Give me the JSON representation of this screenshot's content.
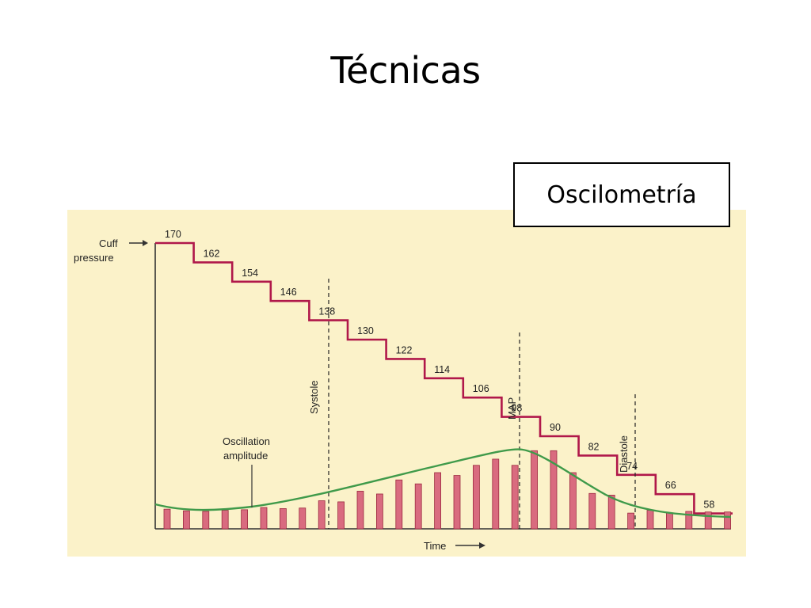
{
  "slide": {
    "title": "Técnicas",
    "label_box": "Oscilometría"
  },
  "colors": {
    "panel_bg": "#fbf2c9",
    "pressure_line": "#b0184a",
    "bar_fill": "#d96b7f",
    "bar_stroke": "#9c2a40",
    "envelope": "#3f9a4a",
    "axis": "#333333"
  },
  "diagram": {
    "cuff_label_line1": "Cuff",
    "cuff_label_line2": "pressure",
    "oscillation_label_line1": "Oscillation",
    "oscillation_label_line2": "amplitude",
    "time_label": "Time",
    "markers": {
      "systole": "Systole",
      "map": "MAP",
      "diastole": "Diastole"
    },
    "cuff_steps": [
      170,
      162,
      154,
      146,
      138,
      130,
      122,
      114,
      106,
      98,
      90,
      82,
      74,
      66,
      58
    ],
    "oscillation_bars": [
      0.35,
      0.32,
      0.31,
      0.33,
      0.34,
      0.38,
      0.36,
      0.37,
      0.5,
      0.48,
      0.67,
      0.62,
      0.87,
      0.8,
      1.0,
      0.95,
      1.13,
      1.24,
      1.13,
      1.39,
      1.39,
      1.0,
      0.63,
      0.6,
      0.28,
      0.33,
      0.28,
      0.31,
      0.3,
      0.3
    ]
  }
}
